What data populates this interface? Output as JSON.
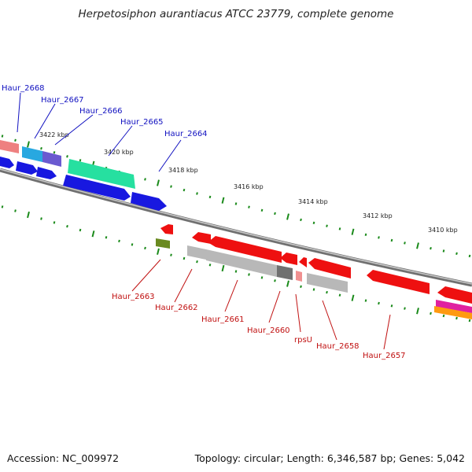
{
  "title": "Herpetosiphon aurantiacus ATCC 23779, complete genome",
  "footer": {
    "accession": "Accession: NC_009972",
    "topology": "Topology: circular; Length: 6,346,587 bp; Genes: 5,042"
  },
  "scale_labels": [
    "3422 kbp",
    "3420 kbp",
    "3418 kbp",
    "3416 kbp",
    "3414 kbp",
    "3412 kbp",
    "3410 kbp"
  ],
  "gene_labels_top": [
    "Haur_2668",
    "Haur_2667",
    "Haur_2666",
    "Haur_2665",
    "Haur_2664"
  ],
  "gene_labels_bottom": [
    "Haur_2663",
    "Haur_2662",
    "Haur_2661",
    "Haur_2660",
    "rpsU",
    "Haur_2658",
    "Haur_2657"
  ],
  "colors": {
    "forward_label": "#1010c0",
    "reverse_label": "#c01010",
    "tick": "#1a8a1a",
    "backbone": "#808080"
  }
}
